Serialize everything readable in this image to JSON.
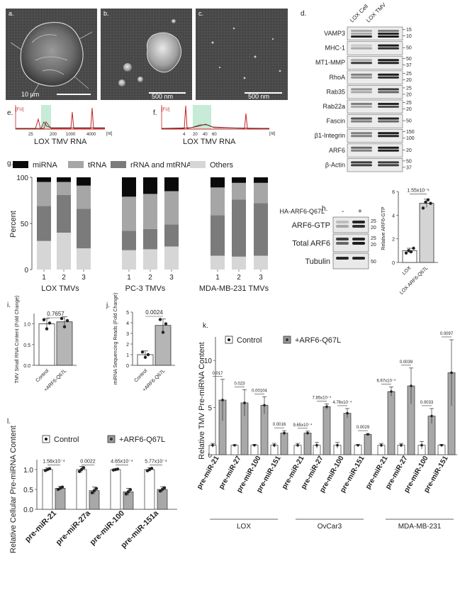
{
  "panel_letters": {
    "a": "a.",
    "b": "b.",
    "c": "c.",
    "d": "d.",
    "e": "e.",
    "f": "f.",
    "g": "g.",
    "h": "h.",
    "i": "i.",
    "j": "j.",
    "k": "k.",
    "l": "l."
  },
  "sem": {
    "a_scale": "10 μm",
    "b_scale": "500 nm",
    "c_scale": "500 nm"
  },
  "western_d": {
    "columns": [
      "LOX Cell",
      "LOX TMV"
    ],
    "rows": [
      {
        "label": "VAMP3",
        "marks": [
          "15",
          "10"
        ]
      },
      {
        "label": "MHC-1",
        "marks": [
          "50"
        ]
      },
      {
        "label": "MT1-MMP",
        "marks": [
          "50",
          "37"
        ]
      },
      {
        "label": "RhoA",
        "marks": [
          "25",
          "20"
        ]
      },
      {
        "label": "Rab35",
        "marks": [
          "25",
          "20"
        ]
      },
      {
        "label": "Rab22a",
        "marks": [
          "25",
          "20"
        ]
      },
      {
        "label": "Fascin",
        "marks": [
          "50"
        ]
      },
      {
        "label": "β1-Integrin",
        "marks": [
          "150",
          "100"
        ]
      },
      {
        "label": "ARF6",
        "marks": [
          "20"
        ]
      },
      {
        "label": "β-Actin",
        "marks": [
          "50",
          "37"
        ]
      }
    ]
  },
  "bioanalyzer": {
    "e": {
      "unit": "[FU]",
      "ticks": [
        "25",
        "200",
        "1000",
        "4000"
      ],
      "xunit": "[nt]",
      "xlabel": "LOX TMV RNA"
    },
    "f": {
      "unit": "[FU]",
      "ticks": [
        "4",
        "20",
        "40",
        "60"
      ],
      "xunit": "[nt]",
      "xlabel": "LOX TMV RNA"
    }
  },
  "chart_data": [
    {
      "id": "g",
      "type": "bar",
      "stacked": true,
      "ylabel": "Percent",
      "ylim": [
        0,
        100
      ],
      "yticks": [
        "0",
        "50",
        "100"
      ],
      "groups": [
        "LOX TMVs",
        "PC-3 TMVs",
        "MDA-MB-231 TMVs"
      ],
      "categories": [
        "1",
        "2",
        "3",
        "1",
        "2",
        "3",
        "1",
        "2",
        "3"
      ],
      "legend": [
        "miRNA",
        "tRNA",
        "rRNA and mtRNA",
        "Others"
      ],
      "colors": {
        "miRNA": "#0a0a0a",
        "tRNA": "#a6a6a6",
        "rRNA": "#7b7b7b",
        "Others": "#d6d6d6"
      },
      "series": [
        {
          "name": "Others",
          "values": [
            31,
            40,
            23,
            21,
            22,
            25,
            15,
            14,
            15
          ]
        },
        {
          "name": "rRNA and mtRNA",
          "values": [
            38,
            41,
            43,
            21,
            22,
            24,
            44,
            62,
            57
          ]
        },
        {
          "name": "tRNA",
          "values": [
            26,
            14,
            25,
            37,
            38,
            36,
            30,
            18,
            22
          ]
        },
        {
          "name": "miRNA",
          "values": [
            5,
            5,
            9,
            21,
            18,
            15,
            11,
            6,
            6
          ]
        }
      ]
    },
    {
      "id": "h_blot",
      "type": "table",
      "treatment_label": "HA-ARF6-Q67L",
      "columns": [
        "-",
        "+"
      ],
      "rows": [
        {
          "label": "ARF6-GTP",
          "marks": [
            "25",
            "20"
          ]
        },
        {
          "label": "Total ARF6",
          "marks": [
            "25",
            "20"
          ]
        },
        {
          "label": "Tubulin",
          "marks": [
            "50"
          ]
        }
      ]
    },
    {
      "id": "h",
      "type": "bar",
      "ylabel": "Relative ARF6-GTP",
      "ylim": [
        0,
        6
      ],
      "yticks": [
        "0",
        "2",
        "4",
        "6"
      ],
      "categories": [
        "LOX",
        "LOX ARF6-Q67L"
      ],
      "values": [
        1.0,
        5.0
      ],
      "errors": [
        0.2,
        0.35
      ],
      "points": [
        [
          0.8,
          1.0,
          0.9,
          1.2
        ],
        [
          4.6,
          5.1,
          5.3,
          5.0
        ]
      ],
      "pvalue": "1.55x10⁻⁶"
    },
    {
      "id": "i",
      "type": "bar",
      "ylabel": "TMV Small RNA Content (Fold Change)",
      "ylim": [
        0,
        1.25
      ],
      "yticks": [
        "0.0",
        "0.5",
        "1.0"
      ],
      "categories": [
        "Control",
        "+ARF6-Q67L"
      ],
      "values": [
        1.0,
        1.05
      ],
      "errors": [
        0.13,
        0.12
      ],
      "points": [
        [
          1.1,
          0.88,
          1.02
        ],
        [
          1.13,
          0.93,
          1.08
        ]
      ],
      "pvalue": "0.7657"
    },
    {
      "id": "j",
      "type": "bar",
      "ylabel": "miRNA Sequencing Reads (Fold Change)",
      "ylim": [
        0,
        5
      ],
      "yticks": [
        "0",
        "1",
        "2",
        "3",
        "4",
        "5"
      ],
      "categories": [
        "Control",
        "+ARF6-Q67L"
      ],
      "values": [
        1.0,
        3.75
      ],
      "errors": [
        0.35,
        0.6
      ],
      "points": [
        [
          1.25,
          0.75,
          1.0
        ],
        [
          4.3,
          3.1,
          3.9
        ]
      ],
      "pvalue": "0.0024"
    },
    {
      "id": "k",
      "type": "bar",
      "ylabel": "Relative TMV Pre-miRNA Content",
      "ylim": [
        0,
        12.5
      ],
      "yticks": [
        "0",
        "5",
        "10"
      ],
      "legend": [
        "Control",
        "+ARF6-Q67L"
      ],
      "groups": [
        "LOX",
        "OvCar3",
        "MDA-MB-231"
      ],
      "categories": [
        "pre-miR-21",
        "pre-miR-27",
        "pre-miR-100",
        "pre-miR-151",
        "pre-miR-21",
        "pre-miR-27",
        "pre-miR-100",
        "pre-miR-151",
        "pre-miR-21",
        "pre-miR-27",
        "pre-miR-100",
        "pre-miR-151"
      ],
      "series": [
        {
          "name": "Control",
          "values": [
            1,
            1,
            1,
            1,
            1,
            1,
            1,
            1,
            1,
            1,
            1,
            1
          ],
          "errors": [
            0.2,
            0.05,
            0.1,
            0.2,
            0.2,
            0.3,
            0.3,
            0.1,
            0.2,
            0.2,
            0.4,
            0.1
          ]
        },
        {
          "name": "+ARF6-Q67L",
          "values": [
            5.8,
            5.5,
            5.25,
            2.3,
            2.3,
            5.1,
            4.4,
            2.15,
            6.7,
            7.3,
            4.1,
            8.7
          ],
          "errors": [
            2.2,
            1.4,
            0.9,
            0.25,
            0.2,
            0.3,
            0.5,
            0.1,
            0.5,
            1.9,
            0.8,
            3.5
          ]
        }
      ],
      "pvalues": [
        "0.017",
        "0.023",
        "0.00104",
        "0.0016",
        "9.65x10⁻⁴",
        "7.85x10⁻⁵",
        "4.76x10⁻⁴",
        "0.0029",
        "6.67x10⁻⁵",
        "0.0039",
        "0.0033",
        "0.0097"
      ]
    },
    {
      "id": "l",
      "type": "bar",
      "ylabel": "Relative Cellular Pre-miRNA Content",
      "ylim": [
        0,
        1.25
      ],
      "yticks": [
        "0.0",
        "0.5",
        "1.0"
      ],
      "legend": [
        "Control",
        "+ARF6-Q67L"
      ],
      "categories": [
        "pre-miR-21",
        "pre-miR-27a",
        "pre-miR-100",
        "pre-miR-151a"
      ],
      "series": [
        {
          "name": "Control",
          "values": [
            1.0,
            1.0,
            1.0,
            1.0
          ],
          "errors": [
            0.04,
            0.08,
            0.02,
            0.05
          ]
        },
        {
          "name": "+ARF6-Q67L",
          "values": [
            0.53,
            0.47,
            0.44,
            0.5
          ],
          "errors": [
            0.05,
            0.09,
            0.09,
            0.07
          ]
        }
      ],
      "pvalues": [
        "1.58x10⁻⁴",
        "0.0022",
        "4.65x10⁻⁴",
        "5.77x10⁻⁴"
      ]
    }
  ]
}
